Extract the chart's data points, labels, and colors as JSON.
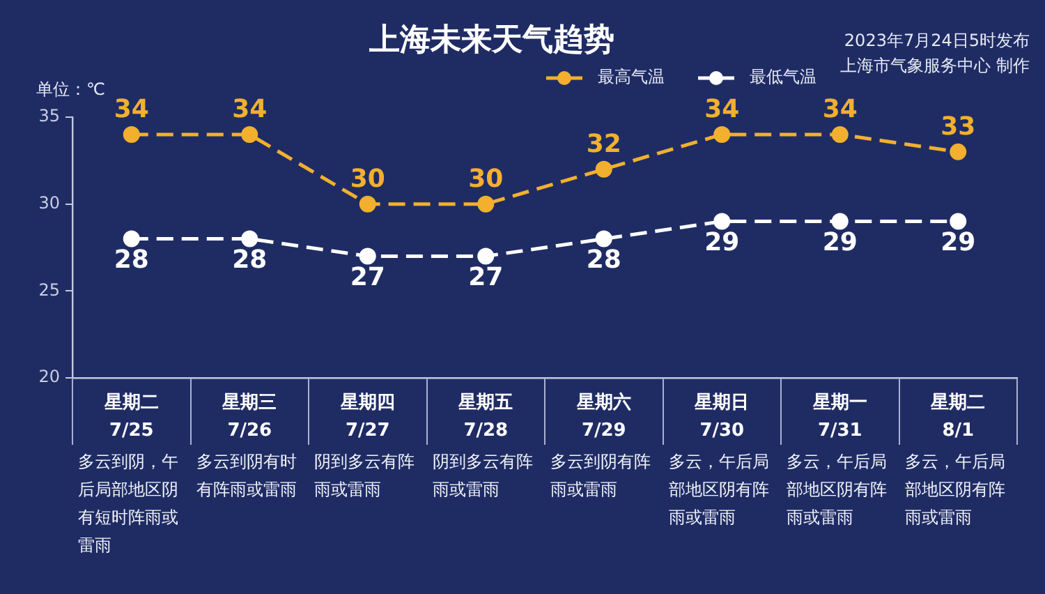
{
  "chart_data": {
    "type": "line",
    "title": "上海未来天气趋势",
    "ylabel": "单位：℃",
    "categories": [
      "星期二\n7/25",
      "星期三\n7/26",
      "星期四\n7/27",
      "星期五\n7/28",
      "星期六\n7/29",
      "星期日\n7/30",
      "星期一\n7/31",
      "星期二\n8/1"
    ],
    "series": [
      {
        "name": "最高气温",
        "color": "#f2b02e",
        "values": [
          34,
          34,
          30,
          30,
          32,
          34,
          34,
          33
        ]
      },
      {
        "name": "最低气温",
        "color": "#ffffff",
        "values": [
          28,
          28,
          27,
          27,
          28,
          29,
          29,
          29
        ]
      }
    ],
    "ylim": [
      20,
      35
    ],
    "yticks": [
      20,
      25,
      30,
      35
    ],
    "legend": "top right",
    "marker": "circle",
    "line_style": "dashed",
    "data_labels": true,
    "annotations": [
      "2023年7月24日5时发布",
      "上海市气象服务中心 制作",
      "多云到阴，午后局部地区阴有短时阵雨或雷雨",
      "多云到阴有时有阵雨或雷雨",
      "阴到多云有阵雨或雷雨",
      "阴到多云有阵雨或雷雨",
      "多云到阴有阵雨或雷雨",
      "多云，午后局部地区阴有阵雨或雷雨",
      "多云，午后局部地区阴有阵雨或雷雨",
      "多云，午后局部地区阴有阵雨或雷雨"
    ]
  }
}
